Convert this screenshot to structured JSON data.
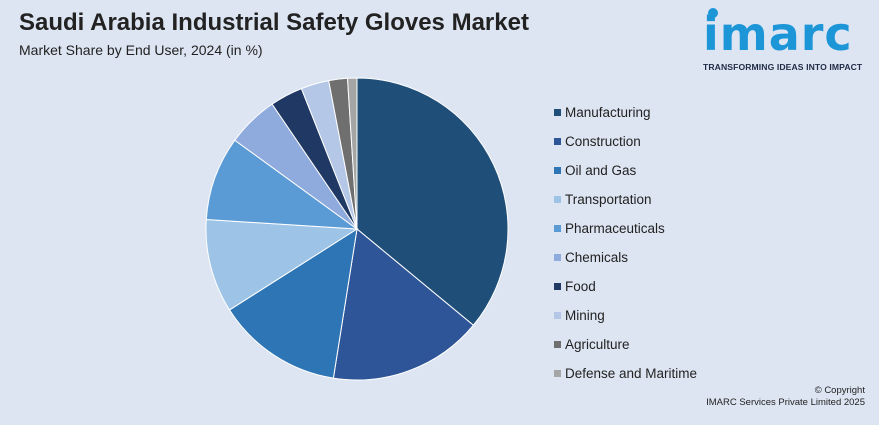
{
  "header": {
    "title": "Saudi Arabia Industrial Safety Gloves Market",
    "subtitle": "Market Share by End User, 2024 (in %)"
  },
  "logo": {
    "word": "imarc",
    "tagline": "TRANSFORMING IDEAS INTO IMPACT"
  },
  "footer": {
    "line1": "© Copyright",
    "line2": "IMARC Services Private Limited 2025"
  },
  "chart_data": {
    "type": "pie",
    "title": "Saudi Arabia Industrial Safety Gloves Market",
    "subtitle": "Market Share by End User, 2024 (in %)",
    "legend_position": "right",
    "categories": [
      "Manufacturing",
      "Construction",
      "Oil and Gas",
      "Transportation",
      "Pharmaceuticals",
      "Chemicals",
      "Food",
      "Mining",
      "Agriculture",
      "Defense and Maritime"
    ],
    "values": [
      36.0,
      16.5,
      13.5,
      10.0,
      9.0,
      5.5,
      3.5,
      3.0,
      2.0,
      1.0
    ],
    "colors": [
      "#1f4e79",
      "#2e5597",
      "#2e75b6",
      "#9dc3e6",
      "#5b9bd5",
      "#8faadc",
      "#203864",
      "#b4c7e7",
      "#6f6f6f",
      "#a5a5a5"
    ]
  }
}
